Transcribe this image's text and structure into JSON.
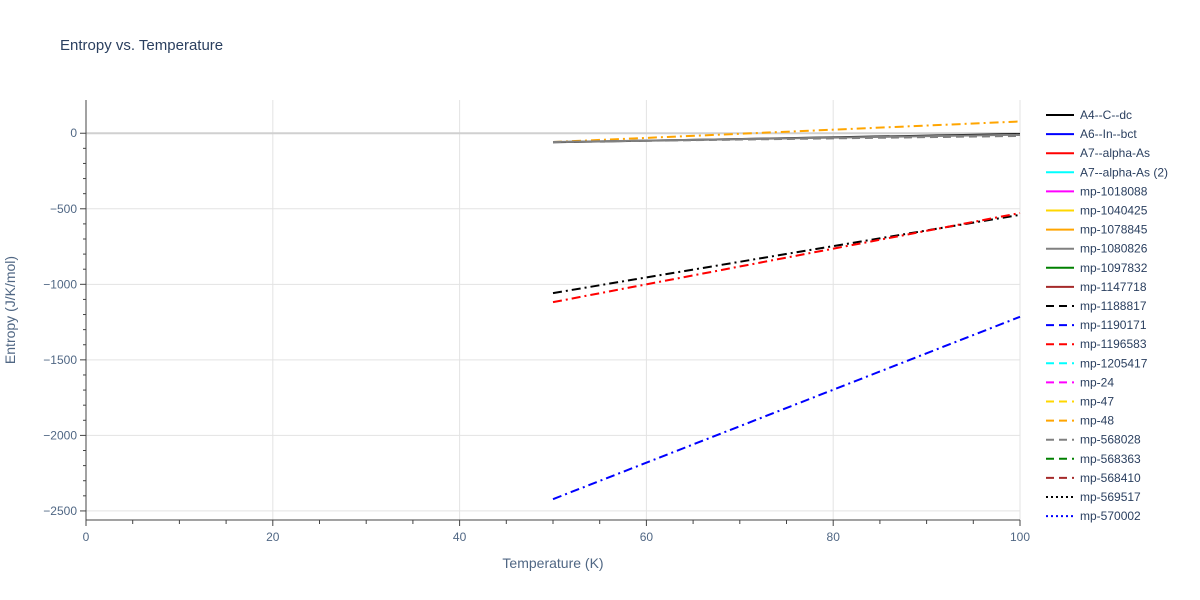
{
  "chart_data": {
    "type": "line",
    "title": "Entropy vs. Temperature",
    "xlabel": "Temperature (K)",
    "ylabel": "Entropy (J/K/mol)",
    "xlim": [
      0,
      100
    ],
    "ylim": [
      -2560,
      220
    ],
    "xticks": [
      0,
      20,
      40,
      60,
      80,
      100
    ],
    "yticks": [
      0,
      -500,
      -1000,
      -1500,
      -2000,
      -2500
    ],
    "ytick_labels": [
      "0",
      "−500",
      "−1000",
      "−1500",
      "−2000",
      "−2500"
    ],
    "grid": true,
    "legend_position": "right",
    "x": [
      50,
      100
    ],
    "series": [
      {
        "name": "A4--C--dc",
        "color": "#000000",
        "dash": "solid",
        "values": [
          -60,
          -5
        ]
      },
      {
        "name": "A6--In--bct",
        "color": "#0000ff",
        "dash": "solid",
        "values": null
      },
      {
        "name": "A7--alpha-As",
        "color": "#ff0000",
        "dash": "solid",
        "values": null
      },
      {
        "name": "A7--alpha-As (2)",
        "color": "#00ffff",
        "dash": "solid",
        "values": null
      },
      {
        "name": "mp-1018088",
        "color": "#ff00ff",
        "dash": "solid",
        "values": null
      },
      {
        "name": "mp-1040425",
        "color": "#ffd700",
        "dash": "solid",
        "values": null
      },
      {
        "name": "mp-1078845",
        "color": "#ffa500",
        "dash": "solid",
        "values": null
      },
      {
        "name": "mp-1080826",
        "color": "#808080",
        "dash": "solid",
        "values": [
          -58,
          -10
        ]
      },
      {
        "name": "mp-1097832",
        "color": "#008000",
        "dash": "solid",
        "values": null
      },
      {
        "name": "mp-1147718",
        "color": "#a52a2a",
        "dash": "solid",
        "values": null
      },
      {
        "name": "mp-1188817",
        "color": "#000000",
        "dash": "dash",
        "values": null
      },
      {
        "name": "mp-1190171",
        "color": "#0000ff",
        "dash": "dash",
        "values": null
      },
      {
        "name": "mp-1196583",
        "color": "#ff0000",
        "dash": "dash",
        "values": null
      },
      {
        "name": "mp-1205417",
        "color": "#00ffff",
        "dash": "dash",
        "values": null
      },
      {
        "name": "mp-24",
        "color": "#ff00ff",
        "dash": "dash",
        "values": null
      },
      {
        "name": "mp-47",
        "color": "#ffd700",
        "dash": "dash",
        "values": null
      },
      {
        "name": "mp-48",
        "color": "#ffa500",
        "dash": "dash",
        "values": null
      },
      {
        "name": "mp-568028",
        "color": "#808080",
        "dash": "dash",
        "values": [
          -58,
          -18
        ]
      },
      {
        "name": "mp-568363",
        "color": "#008000",
        "dash": "dash",
        "values": null
      },
      {
        "name": "mp-568410",
        "color": "#a52a2a",
        "dash": "dash",
        "values": null
      },
      {
        "name": "mp-569517",
        "color": "#000000",
        "dash": "dot",
        "values": null
      },
      {
        "name": "mp-570002",
        "color": "#0000ff",
        "dash": "dot",
        "values": null
      }
    ],
    "extra_lines": [
      {
        "color": "#ffa500",
        "dash": "dashdot",
        "values": [
          -58,
          78
        ]
      },
      {
        "color": "#000000",
        "dash": "dashdot",
        "values": [
          -1058,
          -540
        ]
      },
      {
        "color": "#ff0000",
        "dash": "dashdot",
        "values": [
          -1118,
          -528
        ]
      },
      {
        "color": "#0000ff",
        "dash": "dashdot",
        "values": [
          -2422,
          -1215
        ]
      }
    ]
  }
}
